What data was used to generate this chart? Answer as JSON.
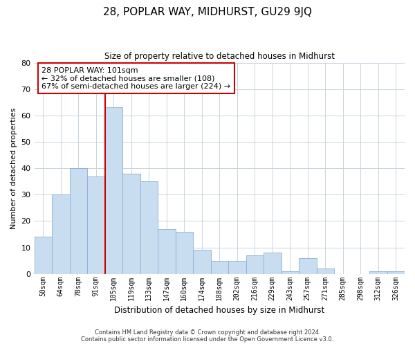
{
  "title": "28, POPLAR WAY, MIDHURST, GU29 9JQ",
  "subtitle": "Size of property relative to detached houses in Midhurst",
  "xlabel": "Distribution of detached houses by size in Midhurst",
  "ylabel": "Number of detached properties",
  "bar_labels": [
    "50sqm",
    "64sqm",
    "78sqm",
    "91sqm",
    "105sqm",
    "119sqm",
    "133sqm",
    "147sqm",
    "160sqm",
    "174sqm",
    "188sqm",
    "202sqm",
    "216sqm",
    "229sqm",
    "243sqm",
    "257sqm",
    "271sqm",
    "285sqm",
    "298sqm",
    "312sqm",
    "326sqm"
  ],
  "bar_values": [
    14,
    30,
    40,
    37,
    63,
    38,
    35,
    17,
    16,
    9,
    5,
    5,
    7,
    8,
    1,
    6,
    2,
    0,
    0,
    1,
    1
  ],
  "bar_color": "#c9ddf0",
  "bar_edge_color": "#8ab0d0",
  "vline_color": "#cc0000",
  "annotation_text": "28 POPLAR WAY: 101sqm\n← 32% of detached houses are smaller (108)\n67% of semi-detached houses are larger (224) →",
  "annotation_box_color": "#ffffff",
  "annotation_box_edge": "#cc0000",
  "ylim": [
    0,
    80
  ],
  "yticks": [
    0,
    10,
    20,
    30,
    40,
    50,
    60,
    70,
    80
  ],
  "footer_line1": "Contains HM Land Registry data © Crown copyright and database right 2024.",
  "footer_line2": "Contains public sector information licensed under the Open Government Licence v3.0.",
  "background_color": "#ffffff",
  "grid_color": "#c8d4e0"
}
